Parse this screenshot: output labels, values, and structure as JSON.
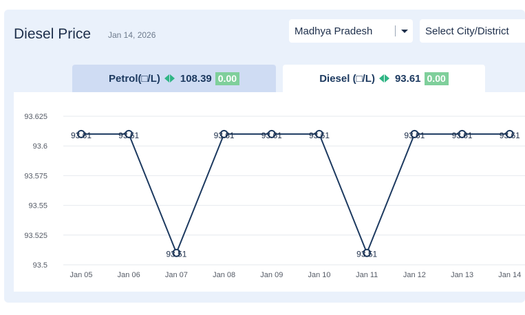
{
  "header": {
    "title": "Diesel Price",
    "date": "Jan 14, 2026"
  },
  "filters": {
    "state": "Madhya Pradesh",
    "city_placeholder": "Select City/District"
  },
  "tabs": {
    "petrol": {
      "label": "Petrol(□/L)",
      "price": "108.39",
      "change": "0.00"
    },
    "diesel": {
      "label": "Diesel (□/L)",
      "price": "93.61",
      "change": "0.00"
    }
  },
  "colors": {
    "line": "#1d3a60",
    "badge": "#7fcf9b",
    "arrow": "#2fb584",
    "active_tab": "#ffffff",
    "inactive_tab": "#cfdcf3"
  },
  "chart_data": {
    "type": "line",
    "categories": [
      "Jan 05",
      "Jan 06",
      "Jan 07",
      "Jan 08",
      "Jan 09",
      "Jan 10",
      "Jan 11",
      "Jan 12",
      "Jan 13",
      "Jan 14"
    ],
    "values": [
      93.61,
      93.61,
      93.51,
      93.61,
      93.61,
      93.61,
      93.51,
      93.61,
      93.61,
      93.61
    ],
    "data_labels": [
      "93.61",
      "93.61",
      "93.51",
      "93.61",
      "93.61",
      "93.61",
      "93.51",
      "93.61",
      "93.61",
      "93.61"
    ],
    "yticks": [
      93.625,
      93.6,
      93.575,
      93.55,
      93.525,
      93.5
    ],
    "ytick_labels": [
      "93.625",
      "93.6",
      "93.575",
      "93.55",
      "93.525",
      "93.5"
    ],
    "ylim": [
      93.5,
      93.625
    ],
    "grid": true,
    "title": "",
    "xlabel": "",
    "ylabel": ""
  }
}
